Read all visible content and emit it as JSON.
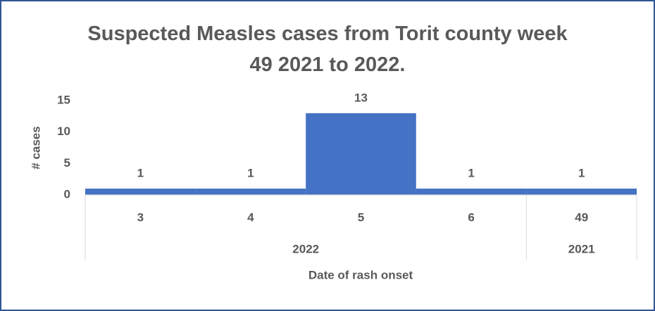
{
  "chart_data": {
    "type": "bar",
    "title": "Suspected Measles cases from Torit county week 49 2021 to 2022.",
    "y_label": "# cases",
    "x_label": "Date of rash onset",
    "groups": [
      {
        "name": "2022",
        "categories": [
          "3",
          "4",
          "5",
          "6"
        ]
      },
      {
        "name": "2021",
        "categories": [
          "49"
        ]
      }
    ],
    "values": [
      1,
      1,
      13,
      1,
      1
    ],
    "color": "#4472c4",
    "ylim": [
      0,
      15
    ],
    "yticks": [
      0,
      5,
      10,
      15
    ],
    "grid": false,
    "data_labels": true
  }
}
